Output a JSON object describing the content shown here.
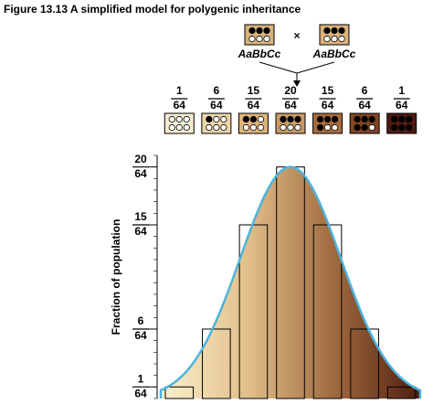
{
  "chart_data": {
    "type": "bar",
    "title": "Figure 13.13  A simplified model for polygenic inheritance",
    "parents": [
      {
        "genotype": "AaBbCc",
        "dark_alleles": 3
      },
      {
        "genotype": "AaBbCc",
        "dark_alleles": 3
      }
    ],
    "cross_symbol": "×",
    "y_label": "Fraction of population",
    "denominator": "64",
    "categories": [
      null,
      null,
      null,
      null,
      null,
      null,
      null
    ],
    "values": [
      1,
      6,
      15,
      20,
      15,
      6,
      1
    ],
    "dark_alleles": [
      0,
      1,
      2,
      3,
      4,
      5,
      6
    ],
    "swatch_colors": [
      "#f6ecd0",
      "#ecd5a6",
      "#dcb47c",
      "#c99a66",
      "#a86c3c",
      "#7f4524",
      "#4e1a10"
    ],
    "parent_color": "#d9b27a",
    "curve_color": "#4bb4de",
    "gradient": [
      "#fbf1cf",
      "#e2bf8a",
      "#a06a3e",
      "#4e1d10"
    ],
    "ylim": [
      0,
      21
    ],
    "yticks": [
      1,
      6,
      15,
      20
    ]
  }
}
